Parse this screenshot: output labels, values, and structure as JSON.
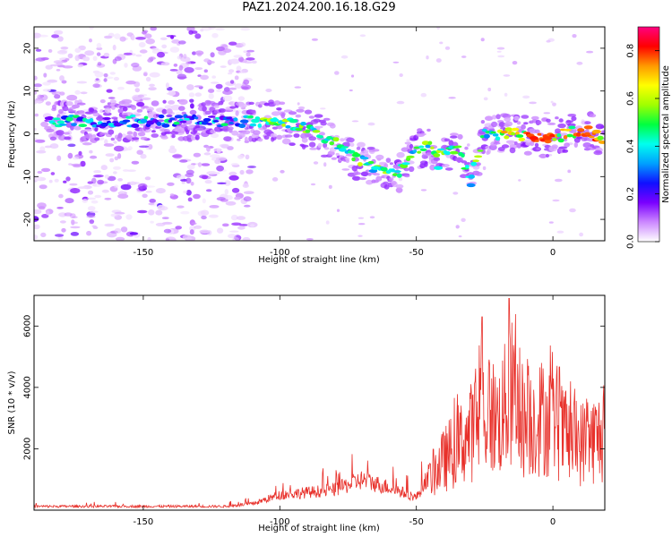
{
  "figure": {
    "title": "PAZ1.2024.200.16.18.G29"
  },
  "chart_data": [
    {
      "type": "heatmap",
      "xlabel": "Height of straight line (km)",
      "ylabel": "Frequency (Hz)",
      "xlim": [
        -190,
        19
      ],
      "ylim": [
        -25,
        25
      ],
      "xticks": [
        -150,
        -100,
        -50,
        0
      ],
      "yticks": [
        -20,
        -10,
        0,
        10,
        20
      ],
      "colorbar": {
        "label": "Normalized spectral amplitude",
        "range": [
          0,
          0.9
        ],
        "ticks": [
          0.0,
          0.2,
          0.4,
          0.6,
          0.8
        ],
        "colormap": "gist_ncar-like",
        "colors": [
          "#ffffff",
          "#cc88ff",
          "#7a00ff",
          "#1010ff",
          "#00a0ff",
          "#00ffee",
          "#00ff40",
          "#a0ff00",
          "#ffff00",
          "#ff9900",
          "#ff0000",
          "#ff0080"
        ]
      },
      "ridge": {
        "description_points": [
          [
            -170,
            3
          ],
          [
            -150,
            3
          ],
          [
            -130,
            3
          ],
          [
            -110,
            3
          ],
          [
            -100,
            3
          ],
          [
            -90,
            1
          ],
          [
            -80,
            -2
          ],
          [
            -72,
            -6
          ],
          [
            -65,
            -8
          ],
          [
            -57,
            -10
          ],
          [
            -52,
            -4
          ],
          [
            -45,
            -3
          ],
          [
            -40,
            -5
          ],
          [
            -35,
            -3
          ],
          [
            -30,
            -10
          ],
          [
            -25,
            0
          ],
          [
            -15,
            0
          ],
          [
            -5,
            -1
          ],
          [
            0,
            -1
          ],
          [
            10,
            1
          ],
          [
            19,
            -1
          ]
        ]
      }
    },
    {
      "type": "line",
      "xlabel": "Height of straight line (km)",
      "ylabel": "SNR (10 * v/v)",
      "xlim": [
        -190,
        19
      ],
      "ylim": [
        0,
        7000
      ],
      "xticks": [
        -150,
        -100,
        -50,
        0
      ],
      "yticks": [
        2000,
        4000,
        6000
      ],
      "line_color": "#e8302a",
      "envelope": [
        [
          -190,
          150
        ],
        [
          -120,
          150
        ],
        [
          -110,
          250
        ],
        [
          -100,
          600
        ],
        [
          -90,
          700
        ],
        [
          -80,
          800
        ],
        [
          -70,
          1200
        ],
        [
          -60,
          900
        ],
        [
          -50,
          500
        ],
        [
          -45,
          1500
        ],
        [
          -38,
          2500
        ],
        [
          -30,
          3500
        ],
        [
          -25,
          4500
        ],
        [
          -20,
          4000
        ],
        [
          -15,
          5200
        ],
        [
          -10,
          3800
        ],
        [
          -5,
          4200
        ],
        [
          0,
          4000
        ],
        [
          5,
          3200
        ],
        [
          10,
          3000
        ],
        [
          15,
          3200
        ],
        [
          19,
          3300
        ]
      ],
      "peaks": [
        [
          -26,
          6300
        ],
        [
          -16,
          6900
        ]
      ]
    }
  ]
}
